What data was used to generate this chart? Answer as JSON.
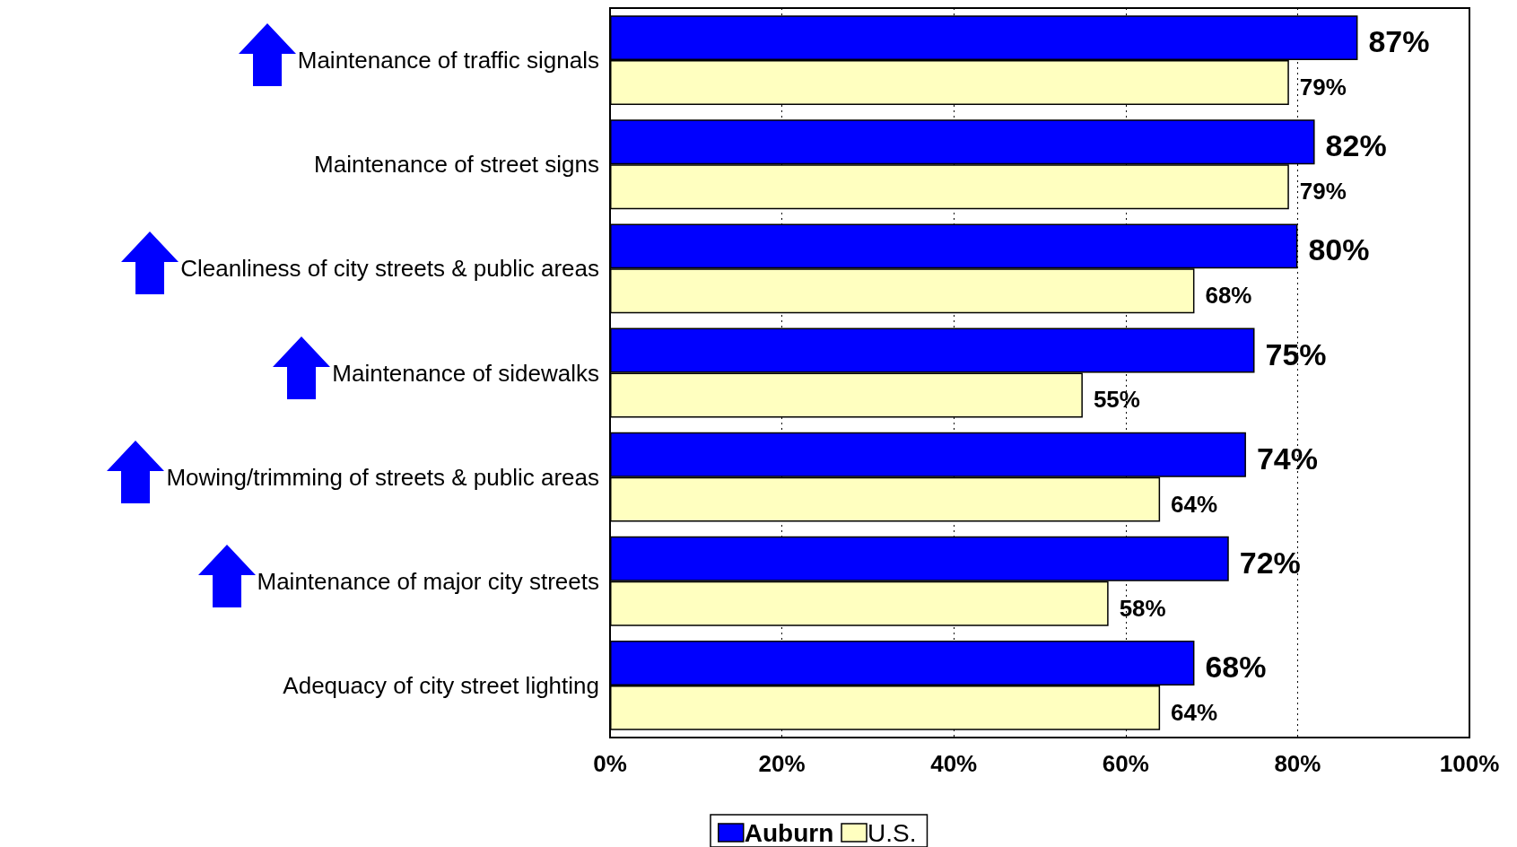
{
  "chart_data": {
    "type": "bar",
    "orientation": "horizontal",
    "categories": [
      "Maintenance of traffic signals",
      "Maintenance of street signs",
      "Cleanliness of city streets & public areas",
      "Maintenance of sidewalks",
      "Mowing/trimming of streets & public areas",
      "Maintenance of major city streets",
      "Adequacy of city street lighting"
    ],
    "series": [
      {
        "name": "Auburn",
        "color": "#0000ff",
        "values": [
          87,
          82,
          80,
          75,
          74,
          72,
          68
        ],
        "value_labels": [
          "87%",
          "82%",
          "80%",
          "75%",
          "74%",
          "72%",
          "68%"
        ]
      },
      {
        "name": "U.S.",
        "color": "#ffffc0",
        "values": [
          79,
          79,
          68,
          55,
          64,
          58,
          64
        ],
        "value_labels": [
          "79%",
          "79%",
          "68%",
          "55%",
          "64%",
          "58%",
          "64%"
        ]
      }
    ],
    "xlim": [
      0,
      100
    ],
    "xticks": [
      {
        "value": 0,
        "label": "0%"
      },
      {
        "value": 20,
        "label": "20%"
      },
      {
        "value": 40,
        "label": "40%"
      },
      {
        "value": 60,
        "label": "60%"
      },
      {
        "value": 80,
        "label": "80%"
      },
      {
        "value": 100,
        "label": "100%"
      }
    ],
    "grid": "x",
    "legend": "bottom"
  }
}
